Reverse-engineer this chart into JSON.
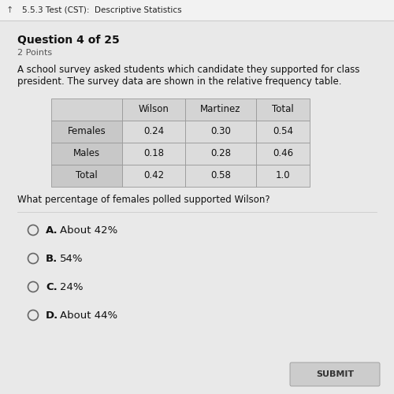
{
  "header_title": "5.5.3 Test (CST):  Descriptive Statistics",
  "question_number": "Question 4 of 25",
  "points": "2 Points",
  "paragraph_line1": "A school survey asked students which candidate they supported for class",
  "paragraph_line2": "president. The survey data are shown in the relative frequency table.",
  "table_headers": [
    "",
    "Wilson",
    "Martinez",
    "Total"
  ],
  "table_rows": [
    [
      "Females",
      "0.24",
      "0.30",
      "0.54"
    ],
    [
      "Males",
      "0.18",
      "0.28",
      "0.46"
    ],
    [
      "Total",
      "0.42",
      "0.58",
      "1.0"
    ]
  ],
  "question": "What percentage of females polled supported Wilson?",
  "choices": [
    {
      "letter": "A.",
      "text": "About 42%"
    },
    {
      "letter": "B.",
      "text": "54%"
    },
    {
      "letter": "C.",
      "text": "24%"
    },
    {
      "letter": "D.",
      "text": "About 44%"
    }
  ],
  "bg_color": "#e9e9e9",
  "top_bar_color": "#f2f2f2",
  "table_header_bg": "#d4d4d4",
  "table_label_bg": "#c8c8c8",
  "table_data_bg": "#dcdcdc",
  "submit_btn_color": "#cccccc",
  "text_color": "#111111",
  "gray_text": "#555555",
  "border_color": "#999999",
  "top_line_color": "#cccccc"
}
